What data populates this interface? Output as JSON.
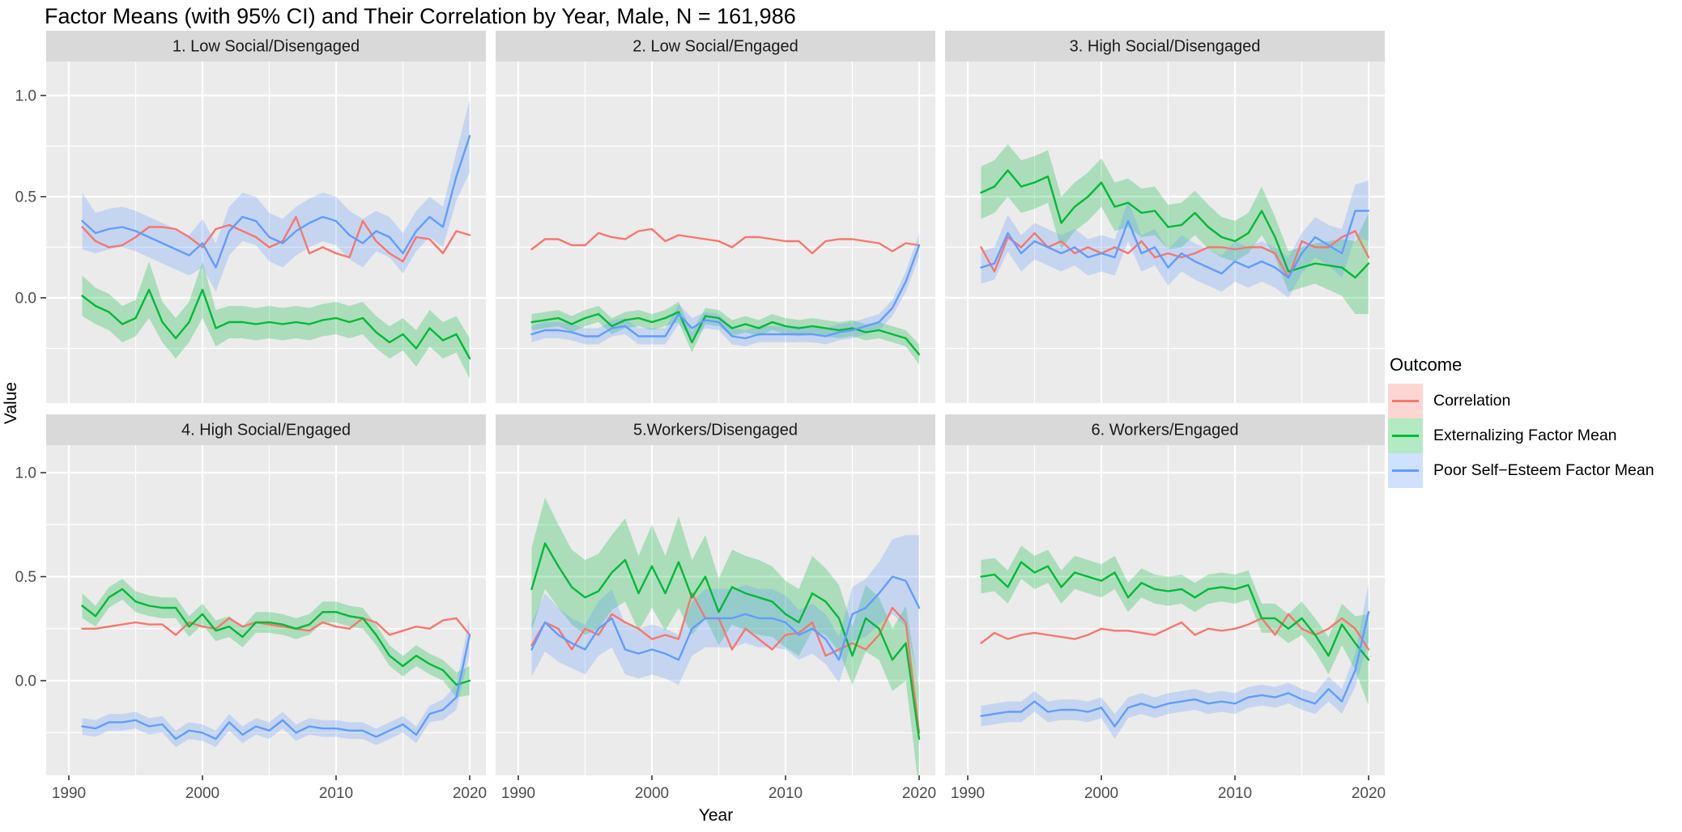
{
  "chart_data": {
    "type": "line",
    "title": "Factor Means (with 95% CI) and Their Correlation by Year, Male, N = 161,986",
    "xlabel": "Year",
    "ylabel": "Value",
    "x_start": 1991,
    "x_end": 2020,
    "x_ticks": [
      1990,
      2000,
      2010,
      2020
    ],
    "y_ticks": [
      1.0,
      0.5,
      0.0
    ],
    "y_tick_labels": [
      "1.0",
      "0.5",
      "0.0"
    ],
    "ylim": [
      -0.52,
      1.17
    ],
    "grid": true,
    "legend_position": "right",
    "legend_title": "Outcome",
    "panel_bg": "#EBEBEB",
    "strip_bg": "#D9D9D9",
    "grid_color": "#FFFFFF",
    "tick_text_color": "#4D4D4D",
    "series": [
      {
        "key": "correlation",
        "name": "Correlation",
        "color": "#F8766D",
        "has_ribbon": false
      },
      {
        "key": "externalizing",
        "name": "Externalizing Factor Mean",
        "color": "#00BA38",
        "has_ribbon": true
      },
      {
        "key": "poor_self_esteem",
        "name": "Poor Self−Esteem Factor Mean",
        "color": "#619CFF",
        "has_ribbon": true
      }
    ],
    "panels": [
      {
        "label": "1. Low Social/Disengaged",
        "correlation": [
          0.35,
          0.28,
          0.25,
          0.26,
          0.3,
          0.35,
          0.35,
          0.34,
          0.3,
          0.25,
          0.34,
          0.36,
          0.33,
          0.3,
          0.25,
          0.28,
          0.4,
          0.22,
          0.25,
          0.22,
          0.2,
          0.38,
          0.28,
          0.22,
          0.18,
          0.3,
          0.29,
          0.22,
          0.33,
          0.31
        ],
        "externalizing": [
          0.01,
          -0.04,
          -0.07,
          -0.13,
          -0.1,
          0.04,
          -0.12,
          -0.2,
          -0.12,
          0.04,
          -0.15,
          -0.12,
          -0.12,
          -0.13,
          -0.12,
          -0.13,
          -0.12,
          -0.13,
          -0.11,
          -0.1,
          -0.12,
          -0.1,
          -0.17,
          -0.22,
          -0.18,
          -0.25,
          -0.15,
          -0.21,
          -0.18,
          -0.3
        ],
        "externalizing_ci": [
          0.1,
          0.09,
          0.09,
          0.09,
          0.09,
          0.14,
          0.1,
          0.1,
          0.1,
          0.14,
          0.09,
          0.08,
          0.08,
          0.08,
          0.08,
          0.08,
          0.08,
          0.08,
          0.08,
          0.08,
          0.08,
          0.08,
          0.08,
          0.08,
          0.08,
          0.09,
          0.09,
          0.09,
          0.09,
          0.1
        ],
        "poor_self_esteem": [
          0.38,
          0.32,
          0.34,
          0.35,
          0.33,
          0.3,
          0.27,
          0.24,
          0.21,
          0.27,
          0.15,
          0.33,
          0.4,
          0.38,
          0.3,
          0.27,
          0.33,
          0.37,
          0.4,
          0.38,
          0.31,
          0.27,
          0.33,
          0.3,
          0.22,
          0.33,
          0.4,
          0.35,
          0.6,
          0.8
        ],
        "poor_self_esteem_ci": [
          0.14,
          0.1,
          0.1,
          0.1,
          0.1,
          0.1,
          0.1,
          0.1,
          0.1,
          0.12,
          0.12,
          0.12,
          0.12,
          0.12,
          0.12,
          0.12,
          0.12,
          0.12,
          0.12,
          0.12,
          0.12,
          0.12,
          0.1,
          0.1,
          0.1,
          0.1,
          0.1,
          0.1,
          0.12,
          0.18
        ]
      },
      {
        "label": "2. Low Social/Engaged",
        "correlation": [
          0.24,
          0.29,
          0.29,
          0.26,
          0.26,
          0.32,
          0.3,
          0.29,
          0.33,
          0.34,
          0.28,
          0.31,
          0.3,
          0.29,
          0.28,
          0.25,
          0.3,
          0.3,
          0.29,
          0.28,
          0.28,
          0.22,
          0.28,
          0.29,
          0.29,
          0.28,
          0.27,
          0.23,
          0.27,
          0.26
        ],
        "externalizing": [
          -0.12,
          -0.11,
          -0.1,
          -0.13,
          -0.1,
          -0.08,
          -0.14,
          -0.11,
          -0.1,
          -0.12,
          -0.1,
          -0.07,
          -0.22,
          -0.09,
          -0.1,
          -0.15,
          -0.13,
          -0.15,
          -0.12,
          -0.14,
          -0.15,
          -0.14,
          -0.15,
          -0.16,
          -0.15,
          -0.17,
          -0.16,
          -0.18,
          -0.2,
          -0.28
        ],
        "externalizing_ci": [
          0.04,
          0.04,
          0.04,
          0.04,
          0.04,
          0.04,
          0.04,
          0.04,
          0.04,
          0.04,
          0.04,
          0.05,
          0.05,
          0.04,
          0.04,
          0.04,
          0.04,
          0.04,
          0.04,
          0.04,
          0.04,
          0.04,
          0.04,
          0.04,
          0.04,
          0.04,
          0.04,
          0.04,
          0.04,
          0.05
        ],
        "poor_self_esteem": [
          -0.18,
          -0.16,
          -0.16,
          -0.17,
          -0.19,
          -0.19,
          -0.15,
          -0.14,
          -0.19,
          -0.19,
          -0.19,
          -0.08,
          -0.15,
          -0.11,
          -0.12,
          -0.19,
          -0.2,
          -0.18,
          -0.18,
          -0.18,
          -0.18,
          -0.18,
          -0.19,
          -0.17,
          -0.16,
          -0.14,
          -0.12,
          -0.05,
          0.08,
          0.26
        ],
        "poor_self_esteem_ci": [
          0.04,
          0.04,
          0.04,
          0.04,
          0.04,
          0.04,
          0.04,
          0.04,
          0.04,
          0.04,
          0.04,
          0.05,
          0.05,
          0.04,
          0.04,
          0.04,
          0.04,
          0.04,
          0.04,
          0.04,
          0.04,
          0.04,
          0.04,
          0.04,
          0.04,
          0.04,
          0.04,
          0.04,
          0.05,
          0.06
        ]
      },
      {
        "label": "3. High Social/Disengaged",
        "correlation": [
          0.25,
          0.13,
          0.3,
          0.25,
          0.32,
          0.25,
          0.28,
          0.22,
          0.25,
          0.22,
          0.25,
          0.22,
          0.28,
          0.2,
          0.22,
          0.2,
          0.22,
          0.25,
          0.25,
          0.24,
          0.25,
          0.25,
          0.22,
          0.1,
          0.28,
          0.25,
          0.25,
          0.3,
          0.33,
          0.2
        ],
        "externalizing": [
          0.52,
          0.55,
          0.63,
          0.55,
          0.57,
          0.6,
          0.37,
          0.45,
          0.5,
          0.57,
          0.45,
          0.47,
          0.42,
          0.43,
          0.35,
          0.36,
          0.42,
          0.35,
          0.3,
          0.28,
          0.32,
          0.43,
          0.3,
          0.13,
          0.15,
          0.17,
          0.16,
          0.15,
          0.1,
          0.17
        ],
        "externalizing_ci": [
          0.13,
          0.13,
          0.13,
          0.13,
          0.13,
          0.13,
          0.13,
          0.12,
          0.12,
          0.12,
          0.12,
          0.12,
          0.12,
          0.12,
          0.11,
          0.11,
          0.11,
          0.11,
          0.1,
          0.1,
          0.1,
          0.12,
          0.1,
          0.1,
          0.1,
          0.1,
          0.12,
          0.14,
          0.18,
          0.25
        ],
        "poor_self_esteem": [
          0.15,
          0.17,
          0.32,
          0.22,
          0.28,
          0.25,
          0.22,
          0.25,
          0.2,
          0.22,
          0.2,
          0.38,
          0.22,
          0.25,
          0.15,
          0.22,
          0.18,
          0.15,
          0.12,
          0.18,
          0.15,
          0.18,
          0.15,
          0.1,
          0.22,
          0.3,
          0.26,
          0.22,
          0.43,
          0.43
        ],
        "poor_self_esteem_ci": [
          0.08,
          0.08,
          0.09,
          0.09,
          0.09,
          0.09,
          0.09,
          0.09,
          0.09,
          0.09,
          0.09,
          0.1,
          0.09,
          0.09,
          0.09,
          0.09,
          0.09,
          0.09,
          0.09,
          0.1,
          0.1,
          0.1,
          0.1,
          0.1,
          0.1,
          0.1,
          0.1,
          0.12,
          0.13,
          0.15
        ]
      },
      {
        "label": "4. High Social/Engaged",
        "correlation": [
          0.25,
          0.25,
          0.26,
          0.27,
          0.28,
          0.27,
          0.27,
          0.22,
          0.28,
          0.26,
          0.25,
          0.3,
          0.26,
          0.28,
          0.27,
          0.26,
          0.25,
          0.24,
          0.28,
          0.26,
          0.25,
          0.3,
          0.28,
          0.22,
          0.24,
          0.26,
          0.25,
          0.29,
          0.3,
          0.22
        ],
        "externalizing": [
          0.36,
          0.31,
          0.4,
          0.44,
          0.38,
          0.36,
          0.35,
          0.35,
          0.26,
          0.32,
          0.24,
          0.26,
          0.21,
          0.28,
          0.28,
          0.27,
          0.25,
          0.27,
          0.33,
          0.33,
          0.31,
          0.3,
          0.22,
          0.12,
          0.07,
          0.12,
          0.08,
          0.05,
          -0.02,
          0.0
        ],
        "externalizing_ci": [
          0.06,
          0.05,
          0.05,
          0.05,
          0.05,
          0.05,
          0.05,
          0.05,
          0.05,
          0.05,
          0.05,
          0.05,
          0.05,
          0.05,
          0.05,
          0.05,
          0.05,
          0.05,
          0.05,
          0.05,
          0.05,
          0.05,
          0.05,
          0.05,
          0.05,
          0.05,
          0.05,
          0.05,
          0.06,
          0.07
        ],
        "poor_self_esteem": [
          -0.22,
          -0.23,
          -0.2,
          -0.2,
          -0.19,
          -0.22,
          -0.21,
          -0.28,
          -0.24,
          -0.25,
          -0.28,
          -0.2,
          -0.26,
          -0.22,
          -0.24,
          -0.19,
          -0.25,
          -0.22,
          -0.23,
          -0.23,
          -0.24,
          -0.24,
          -0.27,
          -0.24,
          -0.21,
          -0.26,
          -0.16,
          -0.14,
          -0.08,
          0.22
        ],
        "poor_self_esteem_ci": [
          0.04,
          0.04,
          0.04,
          0.04,
          0.04,
          0.04,
          0.04,
          0.04,
          0.04,
          0.04,
          0.04,
          0.04,
          0.04,
          0.04,
          0.04,
          0.04,
          0.04,
          0.04,
          0.04,
          0.04,
          0.04,
          0.04,
          0.04,
          0.04,
          0.04,
          0.04,
          0.04,
          0.05,
          0.06,
          0.09
        ]
      },
      {
        "label": "5.Workers/Disengaged",
        "correlation": [
          0.17,
          0.28,
          0.25,
          0.15,
          0.25,
          0.22,
          0.32,
          0.28,
          0.25,
          0.2,
          0.22,
          0.2,
          0.42,
          0.3,
          0.3,
          0.15,
          0.25,
          0.2,
          0.15,
          0.22,
          0.23,
          0.28,
          0.12,
          0.15,
          0.18,
          0.15,
          0.22,
          0.35,
          0.28,
          -0.25
        ],
        "externalizing": [
          0.44,
          0.66,
          0.55,
          0.45,
          0.4,
          0.43,
          0.52,
          0.58,
          0.42,
          0.55,
          0.42,
          0.57,
          0.4,
          0.5,
          0.33,
          0.45,
          0.42,
          0.4,
          0.38,
          0.32,
          0.28,
          0.42,
          0.38,
          0.3,
          0.12,
          0.3,
          0.25,
          0.1,
          0.18,
          -0.28
        ],
        "externalizing_ci": [
          0.2,
          0.22,
          0.2,
          0.18,
          0.18,
          0.18,
          0.18,
          0.2,
          0.18,
          0.2,
          0.18,
          0.22,
          0.18,
          0.2,
          0.16,
          0.18,
          0.18,
          0.18,
          0.17,
          0.16,
          0.16,
          0.18,
          0.16,
          0.16,
          0.14,
          0.16,
          0.15,
          0.15,
          0.18,
          0.25
        ],
        "poor_self_esteem": [
          0.15,
          0.28,
          0.22,
          0.18,
          0.15,
          0.25,
          0.3,
          0.15,
          0.13,
          0.15,
          0.13,
          0.1,
          0.25,
          0.3,
          0.3,
          0.3,
          0.32,
          0.3,
          0.3,
          0.28,
          0.22,
          0.25,
          0.2,
          0.1,
          0.32,
          0.35,
          0.42,
          0.5,
          0.48,
          0.35
        ],
        "poor_self_esteem_ci": [
          0.13,
          0.14,
          0.13,
          0.12,
          0.12,
          0.13,
          0.14,
          0.12,
          0.12,
          0.12,
          0.12,
          0.12,
          0.13,
          0.14,
          0.14,
          0.14,
          0.14,
          0.14,
          0.14,
          0.13,
          0.12,
          0.12,
          0.12,
          0.11,
          0.13,
          0.14,
          0.15,
          0.18,
          0.22,
          0.35
        ]
      },
      {
        "label": "6. Workers/Engaged",
        "correlation": [
          0.18,
          0.23,
          0.2,
          0.22,
          0.23,
          0.22,
          0.21,
          0.2,
          0.22,
          0.25,
          0.24,
          0.24,
          0.23,
          0.22,
          0.25,
          0.28,
          0.22,
          0.25,
          0.24,
          0.25,
          0.27,
          0.3,
          0.22,
          0.32,
          0.25,
          0.22,
          0.25,
          0.3,
          0.25,
          0.15
        ],
        "externalizing": [
          0.5,
          0.51,
          0.45,
          0.57,
          0.52,
          0.55,
          0.45,
          0.52,
          0.5,
          0.48,
          0.52,
          0.4,
          0.47,
          0.44,
          0.43,
          0.44,
          0.4,
          0.44,
          0.45,
          0.44,
          0.46,
          0.3,
          0.3,
          0.25,
          0.3,
          0.22,
          0.12,
          0.27,
          0.18,
          0.1
        ],
        "externalizing_ci": [
          0.08,
          0.08,
          0.08,
          0.08,
          0.08,
          0.08,
          0.08,
          0.08,
          0.08,
          0.08,
          0.08,
          0.07,
          0.07,
          0.07,
          0.07,
          0.07,
          0.07,
          0.07,
          0.07,
          0.07,
          0.07,
          0.07,
          0.07,
          0.07,
          0.08,
          0.08,
          0.09,
          0.1,
          0.13,
          0.22
        ],
        "poor_self_esteem": [
          -0.17,
          -0.16,
          -0.15,
          -0.15,
          -0.1,
          -0.15,
          -0.14,
          -0.14,
          -0.15,
          -0.13,
          -0.22,
          -0.13,
          -0.11,
          -0.13,
          -0.11,
          -0.1,
          -0.09,
          -0.11,
          -0.1,
          -0.11,
          -0.08,
          -0.07,
          -0.08,
          -0.06,
          -0.09,
          -0.11,
          -0.04,
          -0.1,
          0.05,
          0.33
        ],
        "poor_self_esteem_ci": [
          0.05,
          0.05,
          0.05,
          0.05,
          0.05,
          0.05,
          0.05,
          0.05,
          0.05,
          0.05,
          0.06,
          0.05,
          0.05,
          0.05,
          0.05,
          0.05,
          0.05,
          0.05,
          0.05,
          0.05,
          0.05,
          0.05,
          0.05,
          0.05,
          0.05,
          0.05,
          0.06,
          0.06,
          0.08,
          0.14
        ]
      }
    ]
  }
}
